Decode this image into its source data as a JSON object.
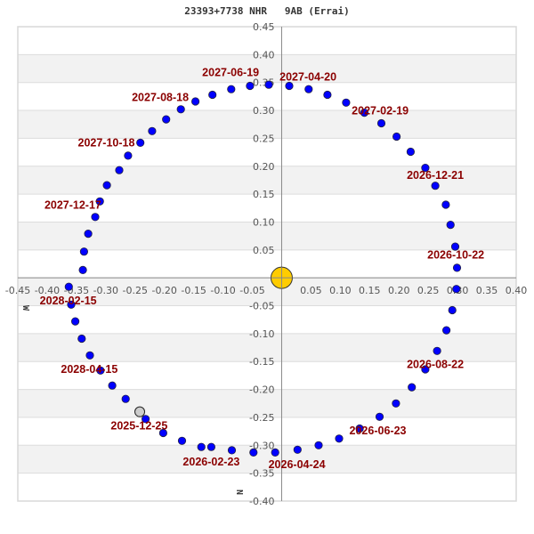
{
  "chart_data": {
    "type": "scatter",
    "title": "23393+7738 NHR   9AB (Errai)",
    "xlabel": "W",
    "ylabel": "N",
    "xlim": [
      -0.45,
      0.4
    ],
    "ylim": [
      -0.4,
      0.45
    ],
    "x_ticks": [
      "-0.45",
      "-0.40",
      "-0.35",
      "-0.30",
      "-0.25",
      "-0.20",
      "-0.15",
      "-0.10",
      "-0.05",
      "0.05",
      "0.10",
      "0.15",
      "0.20",
      "0.25",
      "0.30",
      "0.35",
      "0.40"
    ],
    "y_ticks": [
      "0.45",
      "0.40",
      "0.35",
      "0.30",
      "0.25",
      "0.20",
      "0.15",
      "0.10",
      "0.05",
      "-0.05",
      "-0.10",
      "-0.15",
      "-0.20",
      "-0.25",
      "-0.30",
      "-0.35",
      "-0.40"
    ],
    "grid": "horizontal alternating bands",
    "colors": {
      "point": "#0000ff",
      "point_edge": "#222244",
      "star": "#ffcc00",
      "current": "#cccccc",
      "label": "#8b0000",
      "band": "#f2f2f2"
    },
    "star": {
      "x": 0.0,
      "y": 0.0
    },
    "current_position": {
      "x": -0.242,
      "y": -0.24,
      "date": "2025-12-25"
    },
    "points": [
      [
        -0.232,
        -0.253
      ],
      [
        -0.202,
        -0.278
      ],
      [
        -0.17,
        -0.292
      ],
      [
        -0.137,
        -0.303
      ],
      [
        -0.12,
        -0.303
      ],
      [
        -0.085,
        -0.309
      ],
      [
        -0.048,
        -0.313
      ],
      [
        -0.011,
        -0.313
      ],
      [
        0.027,
        -0.308
      ],
      [
        0.063,
        -0.3
      ],
      [
        0.098,
        -0.288
      ],
      [
        0.133,
        -0.27
      ],
      [
        0.167,
        -0.249
      ],
      [
        0.195,
        -0.225
      ],
      [
        0.222,
        -0.196
      ],
      [
        0.245,
        -0.164
      ],
      [
        0.265,
        -0.131
      ],
      [
        0.281,
        -0.094
      ],
      [
        0.291,
        -0.058
      ],
      [
        0.298,
        -0.02
      ],
      [
        0.299,
        0.018
      ],
      [
        0.296,
        0.056
      ],
      [
        0.288,
        0.095
      ],
      [
        0.28,
        0.131
      ],
      [
        0.262,
        0.165
      ],
      [
        0.245,
        0.197
      ],
      [
        0.22,
        0.226
      ],
      [
        0.196,
        0.253
      ],
      [
        0.17,
        0.277
      ],
      [
        0.141,
        0.296
      ],
      [
        0.11,
        0.314
      ],
      [
        0.078,
        0.328
      ],
      [
        0.046,
        0.338
      ],
      [
        0.013,
        0.344
      ],
      [
        -0.022,
        0.346
      ],
      [
        -0.054,
        0.344
      ],
      [
        -0.086,
        0.338
      ],
      [
        -0.118,
        0.328
      ],
      [
        -0.147,
        0.316
      ],
      [
        -0.172,
        0.302
      ],
      [
        -0.197,
        0.284
      ],
      [
        -0.221,
        0.263
      ],
      [
        -0.241,
        0.242
      ],
      [
        -0.262,
        0.219
      ],
      [
        -0.277,
        0.193
      ],
      [
        -0.298,
        0.166
      ],
      [
        -0.31,
        0.137
      ],
      [
        -0.318,
        0.109
      ],
      [
        -0.33,
        0.079
      ],
      [
        -0.337,
        0.047
      ],
      [
        -0.339,
        0.014
      ],
      [
        -0.363,
        -0.016
      ],
      [
        -0.359,
        -0.048
      ],
      [
        -0.352,
        -0.078
      ],
      [
        -0.341,
        -0.109
      ],
      [
        -0.327,
        -0.139
      ],
      [
        -0.309,
        -0.166
      ],
      [
        -0.289,
        -0.193
      ],
      [
        -0.266,
        -0.217
      ]
    ],
    "labels": [
      {
        "text": "2027-06-19",
        "x": -0.087,
        "y": 0.368
      },
      {
        "text": "2027-04-20",
        "x": 0.045,
        "y": 0.36
      },
      {
        "text": "2027-08-18",
        "x": -0.207,
        "y": 0.323
      },
      {
        "text": "2027-02-19",
        "x": 0.168,
        "y": 0.299
      },
      {
        "text": "2027-10-18",
        "x": -0.299,
        "y": 0.242
      },
      {
        "text": "2026-12-21",
        "x": 0.262,
        "y": 0.184
      },
      {
        "text": "2027-12-17",
        "x": -0.356,
        "y": 0.13
      },
      {
        "text": "2026-10-22",
        "x": 0.297,
        "y": 0.041
      },
      {
        "text": "2028-02-15",
        "x": -0.364,
        "y": -0.041
      },
      {
        "text": "2028-04-15",
        "x": -0.328,
        "y": -0.164
      },
      {
        "text": "2026-08-22",
        "x": 0.262,
        "y": -0.155
      },
      {
        "text": "2025-12-25",
        "x": -0.243,
        "y": -0.265
      },
      {
        "text": "2026-06-23",
        "x": 0.164,
        "y": -0.274
      },
      {
        "text": "2026-02-23",
        "x": -0.12,
        "y": -0.33
      },
      {
        "text": "2026-04-24",
        "x": 0.026,
        "y": -0.335
      }
    ]
  },
  "header": {
    "title": "23393+7738 NHR   9AB (Errai)"
  },
  "axes": {
    "x_dir_label": "W",
    "y_dir_label": "N"
  }
}
